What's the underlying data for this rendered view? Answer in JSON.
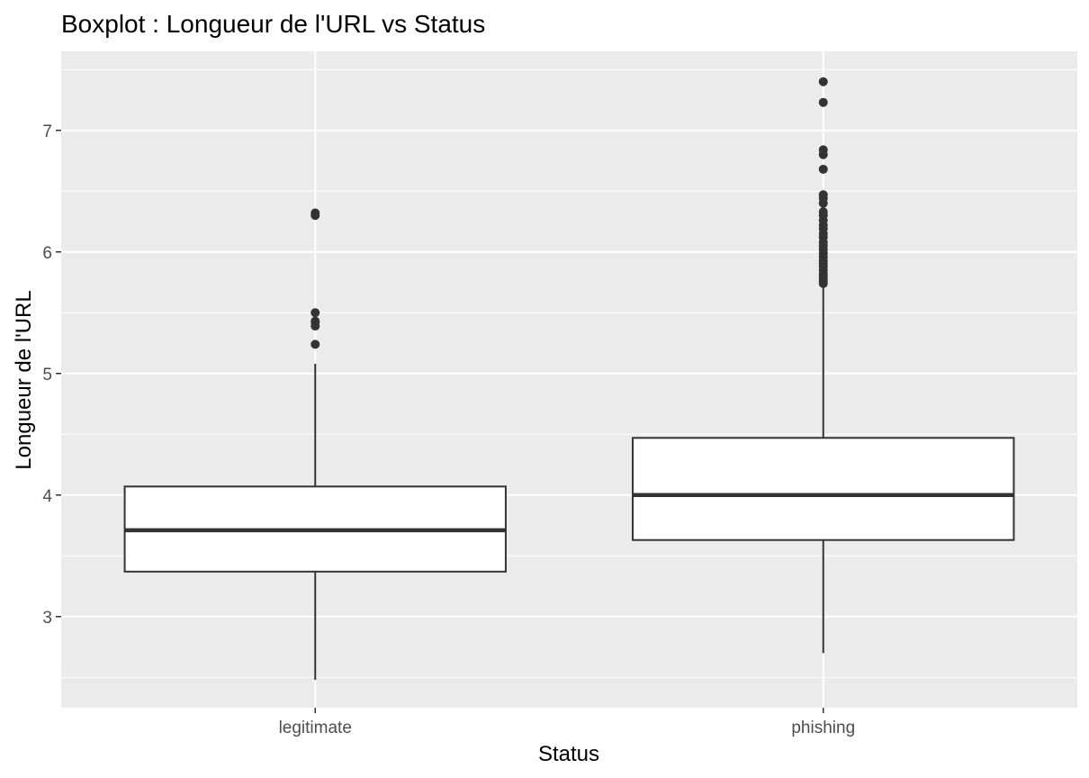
{
  "chart_data": {
    "type": "boxplot",
    "title": "Boxplot : Longueur de l'URL vs Status",
    "xlabel": "Status",
    "ylabel": "Longueur de l'URL",
    "ylim": [
      2.25,
      7.65
    ],
    "yticks": [
      3,
      4,
      5,
      6,
      7
    ],
    "grid": true,
    "legend": "none",
    "colors": {
      "panel": "#ebebeb",
      "grid": "#ffffff",
      "box_fill": "#ffffff",
      "box_stroke": "#333333",
      "tick_text": "#4d4d4d"
    },
    "categories": [
      "legitimate",
      "phishing"
    ],
    "boxes": [
      {
        "category": "legitimate",
        "whisker_low": 2.48,
        "q1": 3.37,
        "median": 3.71,
        "q3": 4.07,
        "whisker_high": 5.08,
        "outliers": [
          5.24,
          5.39,
          5.42,
          5.43,
          5.5,
          6.3,
          6.32
        ]
      },
      {
        "category": "phishing",
        "whisker_low": 2.7,
        "q1": 3.63,
        "median": 4.0,
        "q3": 4.47,
        "whisker_high": 5.72,
        "outliers": [
          5.74,
          5.76,
          5.78,
          5.8,
          5.82,
          5.85,
          5.88,
          5.9,
          5.93,
          5.96,
          5.99,
          6.02,
          6.05,
          6.08,
          6.12,
          6.15,
          6.19,
          6.22,
          6.26,
          6.3,
          6.33,
          6.4,
          6.44,
          6.47,
          6.68,
          6.8,
          6.84,
          7.23,
          7.4
        ]
      }
    ]
  }
}
